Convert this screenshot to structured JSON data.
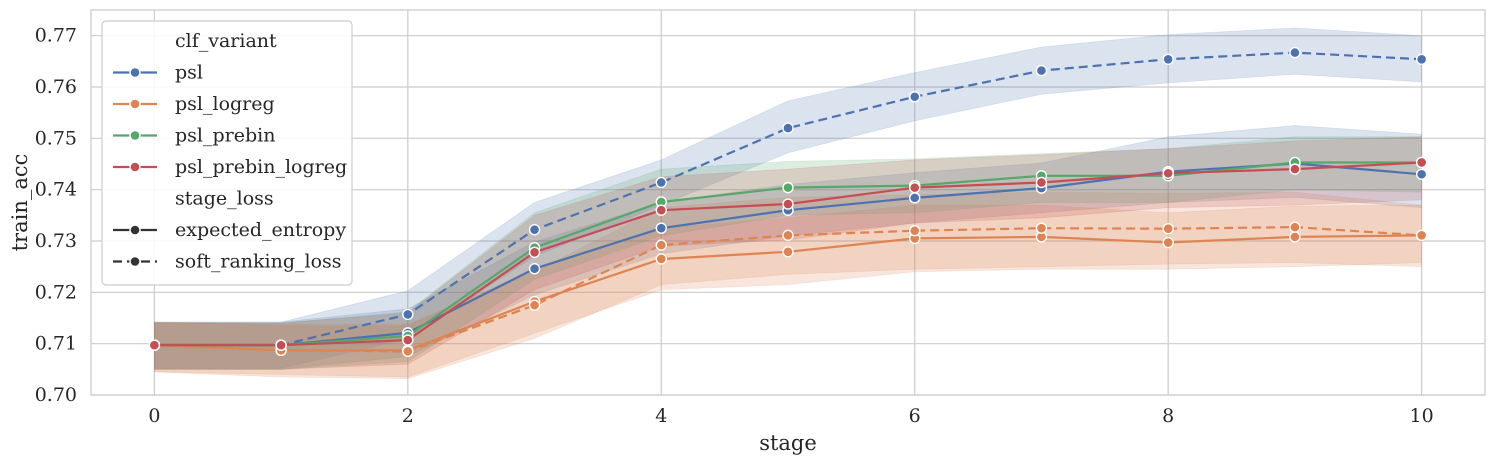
{
  "chart_data": {
    "type": "line",
    "title": "",
    "xlabel": "stage",
    "ylabel": "train_acc",
    "xlim": [
      -0.5,
      10.5
    ],
    "ylim": [
      0.7,
      0.775
    ],
    "xticks": [
      0,
      2,
      4,
      6,
      8,
      10
    ],
    "xtick_labels": [
      "0",
      "2",
      "4",
      "6",
      "8",
      "10"
    ],
    "yticks": [
      0.7,
      0.71,
      0.72,
      0.73,
      0.74,
      0.75,
      0.76,
      0.77
    ],
    "ytick_labels": [
      "0.70",
      "0.71",
      "0.72",
      "0.73",
      "0.74",
      "0.75",
      "0.76",
      "0.77"
    ],
    "grid": true,
    "legend_position": "top-left",
    "legend": {
      "hue_title": "clf_variant",
      "style_title": "stage_loss",
      "hue_entries": [
        {
          "label": "psl",
          "color": "#4c72b0"
        },
        {
          "label": "psl_logreg",
          "color": "#dd8452"
        },
        {
          "label": "psl_prebin",
          "color": "#55a868"
        },
        {
          "label": "psl_prebin_logreg",
          "color": "#c44e52"
        }
      ],
      "style_entries": [
        {
          "label": "expected_entropy",
          "dash": "solid"
        },
        {
          "label": "soft_ranking_loss",
          "dash": "dashed"
        }
      ]
    },
    "x": [
      0,
      1,
      2,
      3,
      4,
      5,
      6,
      7,
      8,
      9,
      10
    ],
    "series": [
      {
        "clf_variant": "psl",
        "stage_loss": "soft_ranking_loss",
        "color": "#4c72b0",
        "dash": "dashed",
        "values": [
          0.7097,
          0.7097,
          0.7157,
          0.7322,
          0.7414,
          0.752,
          0.7581,
          0.7632,
          0.7654,
          0.7667,
          0.7654
        ],
        "lower": [
          0.7052,
          0.7052,
          0.711,
          0.727,
          0.737,
          0.7472,
          0.7534,
          0.7586,
          0.7608,
          0.7625,
          0.761
        ],
        "upper": [
          0.7142,
          0.7142,
          0.7203,
          0.7375,
          0.7458,
          0.7573,
          0.7628,
          0.7678,
          0.7702,
          0.7715,
          0.77
        ]
      },
      {
        "clf_variant": "psl",
        "stage_loss": "expected_entropy",
        "color": "#4c72b0",
        "dash": "solid",
        "values": [
          0.7097,
          0.7097,
          0.7121,
          0.7246,
          0.7325,
          0.736,
          0.7384,
          0.7403,
          0.7435,
          0.7451,
          0.743
        ],
        "lower": [
          0.705,
          0.705,
          0.7075,
          0.7195,
          0.7275,
          0.731,
          0.7335,
          0.7355,
          0.7375,
          0.7385,
          0.7365
        ],
        "upper": [
          0.7142,
          0.7142,
          0.7168,
          0.7298,
          0.7375,
          0.741,
          0.7433,
          0.7452,
          0.7503,
          0.7525,
          0.7508
        ]
      },
      {
        "clf_variant": "psl_logreg",
        "stage_loss": "expected_entropy",
        "color": "#dd8452",
        "dash": "solid",
        "values": [
          0.7097,
          0.7087,
          0.7087,
          0.7182,
          0.7265,
          0.7279,
          0.7305,
          0.7308,
          0.7297,
          0.7308,
          0.7311
        ],
        "lower": [
          0.7045,
          0.704,
          0.7035,
          0.712,
          0.7205,
          0.7215,
          0.724,
          0.7245,
          0.7245,
          0.725,
          0.7258
        ],
        "upper": [
          0.7142,
          0.7135,
          0.7135,
          0.7245,
          0.7325,
          0.7345,
          0.737,
          0.737,
          0.7355,
          0.7368,
          0.737
        ]
      },
      {
        "clf_variant": "psl_logreg",
        "stage_loss": "soft_ranking_loss",
        "color": "#dd8452",
        "dash": "dashed",
        "values": [
          0.7097,
          0.7087,
          0.7085,
          0.7175,
          0.7292,
          0.7311,
          0.732,
          0.7325,
          0.7324,
          0.7327,
          0.7311
        ],
        "lower": [
          0.7045,
          0.7035,
          0.7032,
          0.711,
          0.7215,
          0.7235,
          0.7245,
          0.725,
          0.7255,
          0.7258,
          0.725
        ],
        "upper": [
          0.7142,
          0.7138,
          0.7138,
          0.724,
          0.7365,
          0.7385,
          0.739,
          0.7395,
          0.7393,
          0.7395,
          0.737
        ]
      },
      {
        "clf_variant": "psl_prebin",
        "stage_loss": "expected_entropy",
        "color": "#55a868",
        "dash": "solid",
        "values": [
          0.7097,
          0.7097,
          0.7115,
          0.7287,
          0.7376,
          0.7404,
          0.7408,
          0.7427,
          0.7427,
          0.7453,
          0.7453
        ],
        "lower": [
          0.705,
          0.705,
          0.7065,
          0.7225,
          0.731,
          0.735,
          0.7355,
          0.7375,
          0.7375,
          0.74,
          0.7395
        ],
        "upper": [
          0.714,
          0.714,
          0.7162,
          0.7355,
          0.744,
          0.7455,
          0.746,
          0.747,
          0.748,
          0.7503,
          0.7503
        ]
      },
      {
        "clf_variant": "psl_prebin_logreg",
        "stage_loss": "expected_entropy",
        "color": "#c44e52",
        "dash": "solid",
        "values": [
          0.7097,
          0.7097,
          0.7107,
          0.7278,
          0.736,
          0.7372,
          0.7404,
          0.7414,
          0.7432,
          0.744,
          0.7453
        ],
        "lower": [
          0.705,
          0.705,
          0.706,
          0.7205,
          0.729,
          0.7302,
          0.7335,
          0.7345,
          0.7365,
          0.737,
          0.738
        ],
        "upper": [
          0.714,
          0.714,
          0.716,
          0.735,
          0.7425,
          0.744,
          0.7458,
          0.7468,
          0.748,
          0.7495,
          0.7503
        ]
      }
    ]
  }
}
